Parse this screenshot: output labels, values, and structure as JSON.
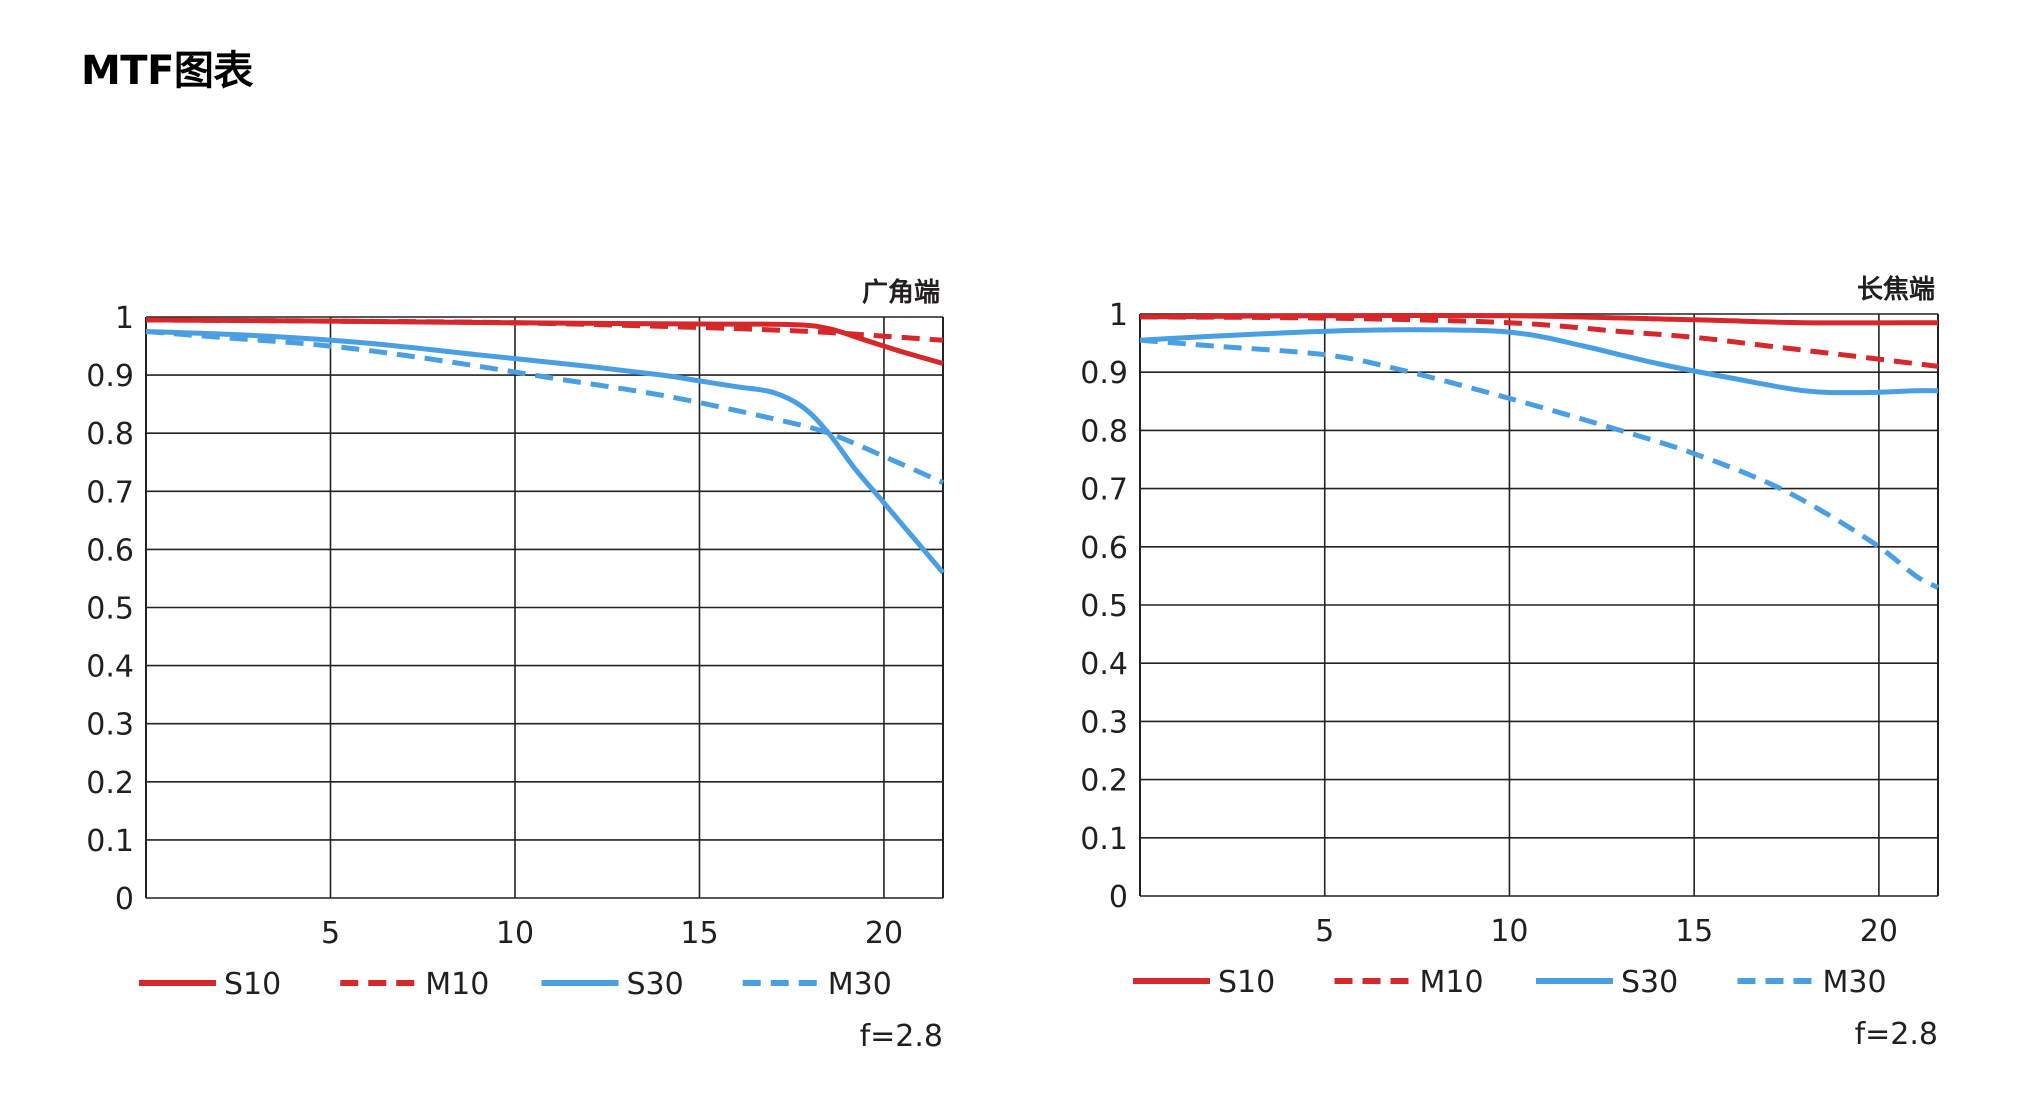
{
  "page": {
    "title": "MTF图表"
  },
  "colors": {
    "red": "#d6282b",
    "blue": "#4a9fe3",
    "grid": "#222222"
  },
  "chart_data": [
    {
      "type": "line",
      "title": "广角端",
      "note": "f=2.8",
      "xlabel": "",
      "ylabel": "",
      "xlim": [
        0,
        21.6
      ],
      "ylim": [
        0,
        1
      ],
      "x_ticks": [
        5,
        10,
        15,
        20
      ],
      "y_ticks": [
        0,
        0.1,
        0.2,
        0.3,
        0.4,
        0.5,
        0.6,
        0.7,
        0.8,
        0.9,
        1
      ],
      "grid": true,
      "legend_position": "bottom",
      "series": [
        {
          "name": "S10",
          "color": "red",
          "style": "solid",
          "x": [
            0,
            5,
            10,
            15,
            17.5,
            18.5,
            19.5,
            20.5,
            21.6
          ],
          "y": [
            0.995,
            0.993,
            0.99,
            0.988,
            0.987,
            0.98,
            0.96,
            0.94,
            0.92
          ]
        },
        {
          "name": "M10",
          "color": "red",
          "style": "dashed",
          "x": [
            0,
            5,
            10,
            15,
            18,
            20,
            21.6
          ],
          "y": [
            0.995,
            0.993,
            0.99,
            0.982,
            0.975,
            0.967,
            0.96
          ]
        },
        {
          "name": "S30",
          "color": "blue",
          "style": "solid",
          "x": [
            0,
            3,
            6,
            9,
            12,
            14,
            15,
            16,
            17,
            17.8,
            18.5,
            19.2,
            20,
            20.8,
            21.6
          ],
          "y": [
            0.975,
            0.968,
            0.955,
            0.935,
            0.915,
            0.9,
            0.89,
            0.88,
            0.87,
            0.845,
            0.8,
            0.74,
            0.68,
            0.62,
            0.56
          ]
        },
        {
          "name": "M30",
          "color": "blue",
          "style": "dashed",
          "x": [
            0,
            2,
            5,
            8,
            11,
            14,
            17,
            18.5,
            20,
            21.6
          ],
          "y": [
            0.975,
            0.965,
            0.95,
            0.925,
            0.895,
            0.865,
            0.825,
            0.8,
            0.76,
            0.715
          ]
        }
      ]
    },
    {
      "type": "line",
      "title": "长焦端",
      "note": "f=2.8",
      "xlabel": "",
      "ylabel": "",
      "xlim": [
        0,
        21.6
      ],
      "ylim": [
        0,
        1
      ],
      "x_ticks": [
        5,
        10,
        15,
        20
      ],
      "y_ticks": [
        0,
        0.1,
        0.2,
        0.3,
        0.4,
        0.5,
        0.6,
        0.7,
        0.8,
        0.9,
        1
      ],
      "grid": true,
      "legend_position": "bottom",
      "series": [
        {
          "name": "S10",
          "color": "red",
          "style": "solid",
          "x": [
            0,
            5,
            10,
            15,
            18,
            21.6
          ],
          "y": [
            0.995,
            0.997,
            0.997,
            0.99,
            0.985,
            0.985
          ]
        },
        {
          "name": "M10",
          "color": "red",
          "style": "dashed",
          "x": [
            0,
            5,
            10,
            13,
            15,
            17,
            19,
            21.6
          ],
          "y": [
            0.995,
            0.993,
            0.985,
            0.97,
            0.96,
            0.945,
            0.93,
            0.91
          ]
        },
        {
          "name": "S30",
          "color": "blue",
          "style": "solid",
          "x": [
            0,
            3,
            6,
            9,
            10.5,
            12,
            14,
            16,
            18,
            19.5,
            21,
            21.6
          ],
          "y": [
            0.955,
            0.965,
            0.972,
            0.972,
            0.965,
            0.945,
            0.915,
            0.89,
            0.868,
            0.865,
            0.868,
            0.868
          ]
        },
        {
          "name": "M30",
          "color": "blue",
          "style": "dashed",
          "x": [
            0,
            2,
            5,
            7,
            10,
            13,
            15,
            17,
            18.5,
            20,
            21,
            21.6
          ],
          "y": [
            0.955,
            0.945,
            0.93,
            0.905,
            0.855,
            0.8,
            0.76,
            0.71,
            0.66,
            0.6,
            0.55,
            0.53
          ]
        }
      ]
    }
  ]
}
